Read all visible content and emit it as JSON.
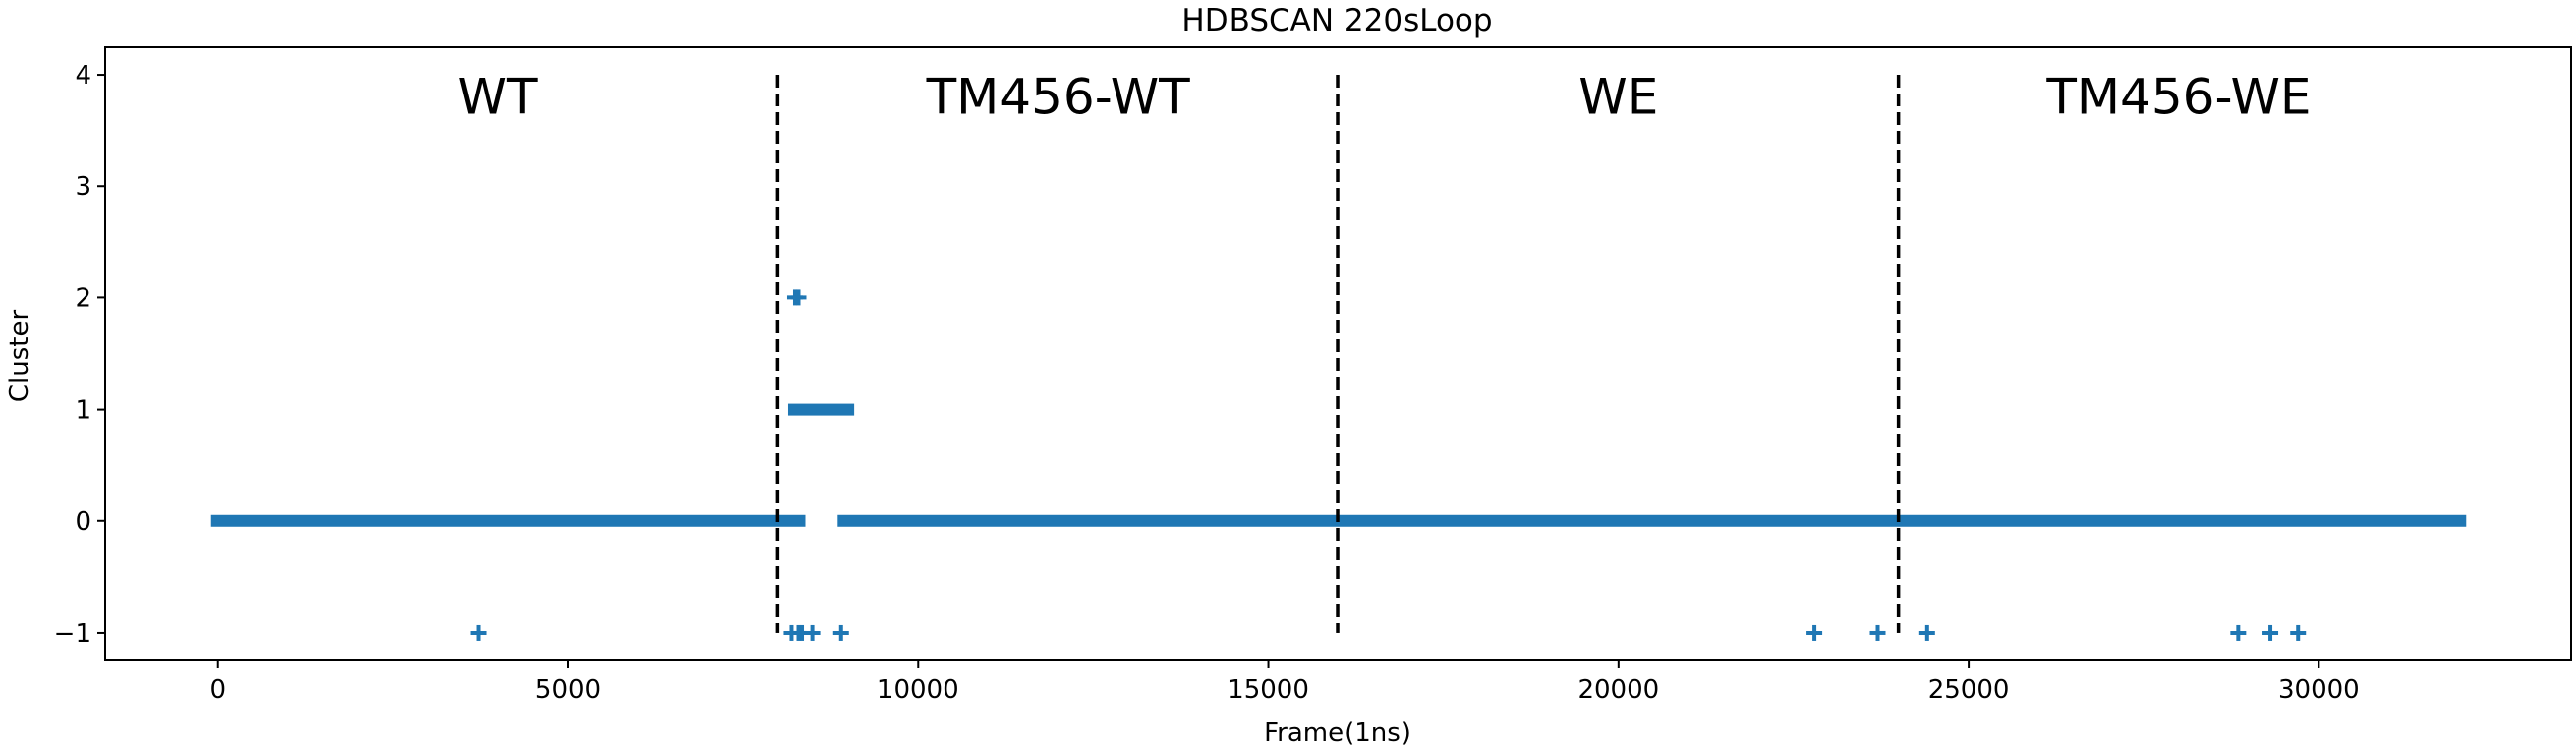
{
  "chart_data": {
    "type": "scatter",
    "title": "HDBSCAN 220sLoop",
    "xlabel": "Frame(1ns)",
    "ylabel": "Cluster",
    "xlim": [
      -1600,
      33600
    ],
    "ylim": [
      -1.25,
      4.25
    ],
    "xticks": [
      0,
      5000,
      10000,
      15000,
      20000,
      25000,
      30000
    ],
    "xtick_labels": [
      "0",
      "5000",
      "10000",
      "15000",
      "20000",
      "25000",
      "30000"
    ],
    "yticks": [
      -1,
      0,
      1,
      2,
      3,
      4
    ],
    "ytick_labels": [
      "−1",
      "0",
      "1",
      "2",
      "3",
      "4"
    ],
    "grid": false,
    "marker": "+",
    "color": "#1f77b4",
    "series": [
      {
        "dense_runs": [
          {
            "y": 0,
            "x_start": 0,
            "x_end": 8300
          },
          {
            "y": 0,
            "x_start": 8950,
            "x_end": 32000
          },
          {
            "y": 1,
            "x_start": 8250,
            "x_end": 8990
          }
        ],
        "points": [
          {
            "x": 3730,
            "y": -1
          },
          {
            "x": 8200,
            "y": -1
          },
          {
            "x": 8300,
            "y": -1
          },
          {
            "x": 8350,
            "y": -1
          },
          {
            "x": 8500,
            "y": -1
          },
          {
            "x": 8900,
            "y": -1
          },
          {
            "x": 22800,
            "y": -1
          },
          {
            "x": 23700,
            "y": -1
          },
          {
            "x": 24400,
            "y": -1
          },
          {
            "x": 28850,
            "y": -1
          },
          {
            "x": 29300,
            "y": -1
          },
          {
            "x": 29700,
            "y": -1
          },
          {
            "x": 8250,
            "y": 2
          },
          {
            "x": 8300,
            "y": 2
          }
        ]
      }
    ],
    "vlines": [
      {
        "x": 8000,
        "y_from": -1,
        "y_to": 4,
        "style": "dashed",
        "color": "#000000"
      },
      {
        "x": 16000,
        "y_from": -1,
        "y_to": 4,
        "style": "dashed",
        "color": "#000000"
      },
      {
        "x": 24000,
        "y_from": -1,
        "y_to": 4,
        "style": "dashed",
        "color": "#000000"
      }
    ],
    "annotations": [
      {
        "text": "WT",
        "x": 4000,
        "y": 3.8
      },
      {
        "text": "TM456-WT",
        "x": 12000,
        "y": 3.8
      },
      {
        "text": "WE",
        "x": 20000,
        "y": 3.8
      },
      {
        "text": "TM456-WE",
        "x": 28000,
        "y": 3.8
      }
    ]
  }
}
